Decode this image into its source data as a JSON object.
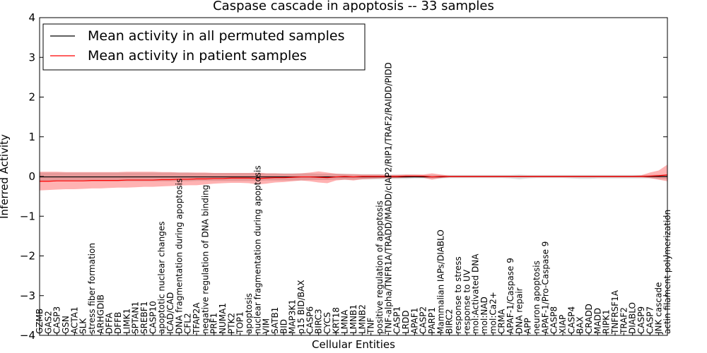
{
  "chart_data": {
    "type": "line",
    "title": "Caspase cascade in apoptosis -- 33 samples",
    "xlabel": "Cellular Entities",
    "ylabel": "Inferred Activity",
    "ylim": [
      -4,
      4
    ],
    "yticks": [
      -4,
      -3,
      -2,
      -1,
      0,
      1,
      2,
      3,
      4
    ],
    "legend_position": "top-left",
    "categories": [
      "GZMB",
      "GAS2",
      "CASP3",
      "GSN",
      "ACTA1",
      "SLK",
      "stress fiber formation",
      "ARHGDIB",
      "DFFA",
      "DFFB",
      "LIMK1",
      "SPTAN1",
      "SREBF1",
      "CASP10",
      "apoptotic nuclear changes",
      "ICAD/CAD",
      "DNA fragmentation during apoptosis",
      "CFL2",
      "TFAP2A",
      "negative regulation of DNA binding",
      "PRF1",
      "NUMA1",
      "PTK2",
      "TOP1",
      "apoptosis",
      "nuclear fragmentation during apoptosis",
      "VIM",
      "SATB1",
      "BID",
      "MAP3K1",
      "p15 BID/BAX",
      "CASP6",
      "BIRC3",
      "CYCS",
      "KRT18",
      "LMNA",
      "LMNB1",
      "LMNB2",
      "TNF",
      "positive regulation of apoptosis",
      "TNF-alpha/TNFR1A/TRADD/MADD/cIAP2/RIP1/TRAF2/RAIDD/PIDD",
      "CASP1",
      "LRDD",
      "APAF1",
      "CASP2",
      "PARP1",
      "Mammalian IAPs/DIABLO",
      "BIRC2",
      "response to stress",
      "response to UV",
      "mol:Activated DNA",
      "mol:NAD",
      "mol:Ca2+",
      "CRMA",
      "APAF-1/Caspase 9",
      "DNA repair",
      "APP",
      "neuron apoptosis",
      "APAF-1/Pro-Caspase 9",
      "CASP8",
      "XIAP",
      "CASP4",
      "BAX",
      "CRADD",
      "MADD",
      "RIPK1",
      "TNFRSF1A",
      "TRAF2",
      "DIABLO",
      "CASP9",
      "CASP7",
      "JNK cascade",
      "actin filament polymerization"
    ],
    "series": [
      {
        "name": "Mean activity in all permuted samples",
        "color": "#000000",
        "values": [
          -0.01,
          -0.01,
          -0.01,
          -0.01,
          -0.01,
          -0.01,
          -0.01,
          -0.01,
          -0.01,
          -0.01,
          -0.01,
          -0.01,
          -0.01,
          -0.01,
          -0.01,
          -0.01,
          -0.01,
          -0.01,
          -0.01,
          -0.01,
          -0.01,
          -0.01,
          -0.01,
          -0.01,
          -0.01,
          -0.01,
          -0.01,
          -0.01,
          -0.01,
          -0.01,
          -0.01,
          -0.01,
          -0.01,
          -0.01,
          -0.01,
          -0.01,
          -0.01,
          -0.01,
          -0.01,
          -0.01,
          -0.01,
          -0.01,
          -0.01,
          -0.01,
          -0.01,
          -0.01,
          -0.01,
          0.0,
          0.0,
          0.0,
          0.0,
          0.0,
          0.0,
          0.0,
          0.0,
          0.0,
          0.0,
          0.0,
          0.0,
          0.0,
          0.0,
          0.0,
          0.0,
          0.0,
          0.0,
          0.0,
          0.0,
          0.0,
          0.0,
          0.0,
          0.0,
          0.0,
          0.0
        ],
        "band_lower": [
          -0.12,
          -0.12,
          -0.12,
          -0.12,
          -0.12,
          -0.12,
          -0.12,
          -0.12,
          -0.12,
          -0.12,
          -0.12,
          -0.12,
          -0.12,
          -0.12,
          -0.12,
          -0.12,
          -0.12,
          -0.12,
          -0.11,
          -0.11,
          -0.11,
          -0.11,
          -0.11,
          -0.11,
          -0.11,
          -0.11,
          -0.1,
          -0.1,
          -0.1,
          -0.1,
          -0.1,
          -0.09,
          -0.09,
          -0.09,
          -0.08,
          -0.08,
          -0.08,
          -0.07,
          -0.07,
          -0.07,
          -0.06,
          -0.06,
          -0.06,
          -0.05,
          -0.05,
          -0.05,
          -0.05,
          -0.04,
          -0.04,
          -0.04,
          -0.04,
          -0.04,
          -0.04,
          -0.04,
          -0.05,
          -0.07,
          -0.05,
          -0.04,
          -0.04,
          -0.04,
          -0.04,
          -0.05,
          -0.06,
          -0.06,
          -0.05,
          -0.05,
          -0.05,
          -0.05,
          -0.05,
          -0.05,
          -0.05,
          -0.06,
          -0.07
        ],
        "band_upper": [
          0.1,
          0.1,
          0.1,
          0.1,
          0.1,
          0.1,
          0.1,
          0.1,
          0.1,
          0.1,
          0.1,
          0.1,
          0.1,
          0.1,
          0.1,
          0.1,
          0.1,
          0.1,
          0.09,
          0.09,
          0.09,
          0.09,
          0.09,
          0.09,
          0.09,
          0.09,
          0.08,
          0.08,
          0.08,
          0.08,
          0.08,
          0.08,
          0.07,
          0.07,
          0.07,
          0.07,
          0.06,
          0.06,
          0.06,
          0.06,
          0.05,
          0.05,
          0.05,
          0.05,
          0.04,
          0.04,
          0.04,
          0.04,
          0.04,
          0.04,
          0.04,
          0.04,
          0.04,
          0.04,
          0.04,
          0.05,
          0.04,
          0.04,
          0.04,
          0.04,
          0.04,
          0.04,
          0.04,
          0.04,
          0.04,
          0.04,
          0.04,
          0.04,
          0.04,
          0.04,
          0.04,
          0.05,
          0.05
        ]
      },
      {
        "name": "Mean activity in patient samples",
        "color": "#ff0000",
        "values": [
          -0.12,
          -0.12,
          -0.11,
          -0.11,
          -0.11,
          -0.11,
          -0.1,
          -0.1,
          -0.1,
          -0.1,
          -0.09,
          -0.09,
          -0.09,
          -0.09,
          -0.08,
          -0.08,
          -0.07,
          -0.07,
          -0.06,
          -0.06,
          -0.05,
          -0.05,
          -0.04,
          -0.04,
          -0.04,
          -0.05,
          -0.04,
          -0.03,
          -0.03,
          -0.02,
          -0.01,
          -0.01,
          -0.02,
          -0.03,
          -0.01,
          0.0,
          -0.01,
          0.0,
          0.0,
          0.0,
          0.0,
          0.0,
          0.01,
          0.01,
          0.01,
          -0.01,
          0.0,
          0.0,
          0.0,
          0.0,
          0.0,
          0.0,
          0.0,
          0.0,
          0.0,
          0.0,
          0.0,
          0.0,
          0.0,
          0.0,
          0.0,
          0.0,
          0.0,
          0.0,
          0.0,
          0.0,
          0.0,
          0.0,
          0.0,
          0.0,
          0.01,
          0.02,
          0.04
        ],
        "band_lower": [
          -0.35,
          -0.34,
          -0.33,
          -0.32,
          -0.32,
          -0.31,
          -0.3,
          -0.3,
          -0.29,
          -0.28,
          -0.28,
          -0.27,
          -0.26,
          -0.26,
          -0.25,
          -0.24,
          -0.23,
          -0.22,
          -0.22,
          -0.2,
          -0.18,
          -0.17,
          -0.16,
          -0.16,
          -0.17,
          -0.2,
          -0.18,
          -0.15,
          -0.14,
          -0.12,
          -0.1,
          -0.12,
          -0.15,
          -0.17,
          -0.1,
          -0.08,
          -0.1,
          -0.07,
          -0.06,
          -0.05,
          -0.04,
          -0.04,
          -0.03,
          -0.02,
          -0.03,
          -0.08,
          -0.04,
          -0.02,
          -0.02,
          -0.02,
          -0.02,
          -0.02,
          -0.02,
          -0.02,
          -0.02,
          -0.02,
          -0.02,
          -0.02,
          -0.02,
          -0.02,
          -0.02,
          -0.02,
          -0.02,
          -0.02,
          -0.02,
          -0.02,
          -0.02,
          -0.02,
          -0.02,
          -0.02,
          -0.04,
          -0.08,
          -0.12
        ],
        "band_upper": [
          0.12,
          0.12,
          0.12,
          0.11,
          0.11,
          0.11,
          0.11,
          0.11,
          0.11,
          0.11,
          0.12,
          0.12,
          0.12,
          0.12,
          0.11,
          0.11,
          0.1,
          0.1,
          0.1,
          0.1,
          0.09,
          0.09,
          0.09,
          0.09,
          0.09,
          0.1,
          0.08,
          0.08,
          0.07,
          0.07,
          0.08,
          0.1,
          0.13,
          0.1,
          0.07,
          0.06,
          0.06,
          0.05,
          0.05,
          0.05,
          0.04,
          0.04,
          0.05,
          0.05,
          0.05,
          0.08,
          0.05,
          0.02,
          0.02,
          0.02,
          0.02,
          0.02,
          0.02,
          0.02,
          0.02,
          0.02,
          0.02,
          0.02,
          0.02,
          0.02,
          0.02,
          0.02,
          0.02,
          0.02,
          0.02,
          0.02,
          0.02,
          0.02,
          0.02,
          0.03,
          0.1,
          0.15,
          0.3
        ]
      }
    ]
  }
}
